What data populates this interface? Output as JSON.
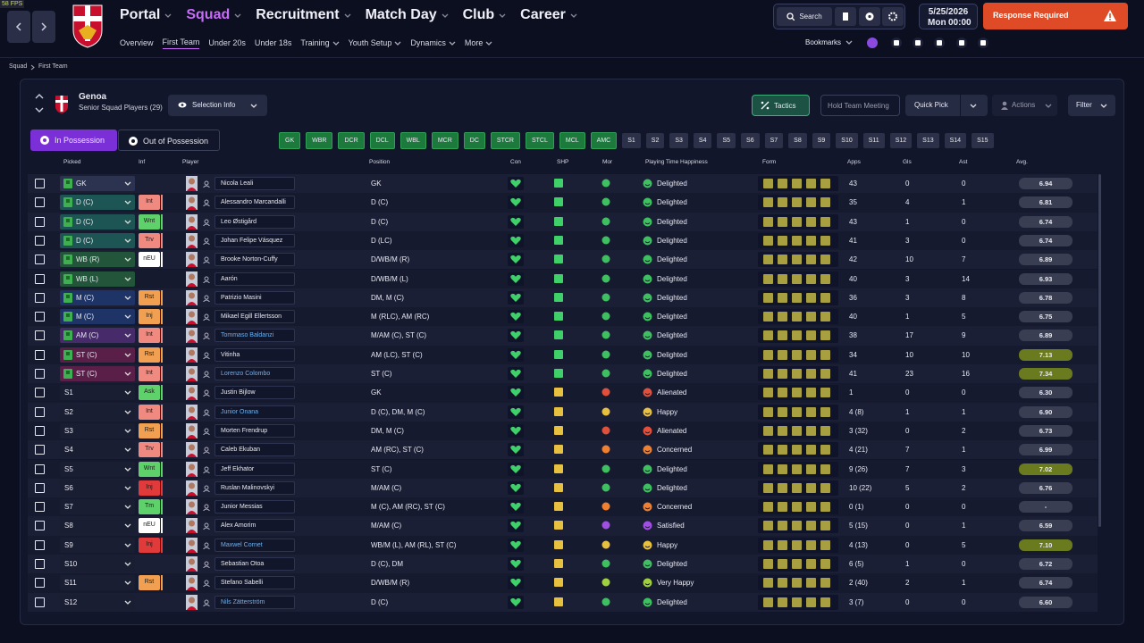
{
  "fps": "58 FPS",
  "nav": {
    "menus": [
      "Portal",
      "Squad",
      "Recruitment",
      "Match Day",
      "Club",
      "Career"
    ],
    "active_menu": 1,
    "submenu": [
      "Overview",
      "First Team",
      "Under 20s",
      "Under 18s",
      "Training",
      "Youth Setup",
      "Dynamics",
      "More"
    ],
    "active_submenu": 1,
    "submenu_dropdowns": [
      4,
      5,
      6,
      7
    ]
  },
  "topbar": {
    "search": "Search",
    "date": "5/25/2026",
    "day": "Mon",
    "time": "00:00",
    "response": "Response Required",
    "bookmarks": "Bookmarks"
  },
  "breadcrumb": [
    "Squad",
    "First Team"
  ],
  "team": {
    "name": "Genoa",
    "subtitle": "Senior Squad Players (29)",
    "selection": "Selection Info"
  },
  "buttons": {
    "tactics": "Tactics",
    "meeting": "Hold Team Meeting",
    "quick_pick": "Quick Pick",
    "actions": "Actions",
    "filter": "Filter"
  },
  "tabs": [
    "In Possession",
    "Out of Possession"
  ],
  "position_pills": {
    "active": [
      "GK",
      "WBR",
      "DCR",
      "DCL",
      "WBL",
      "MCR",
      "DC",
      "STCR",
      "STCL",
      "MCL",
      "AMC"
    ],
    "subs": [
      "S1",
      "S2",
      "S3",
      "S4",
      "S5",
      "S6",
      "S7",
      "S8",
      "S9",
      "S10",
      "S11",
      "S12",
      "S13",
      "S14",
      "S15"
    ]
  },
  "columns": {
    "picked": "Picked",
    "inf": "Inf",
    "player": "Player",
    "position": "Position",
    "con": "Con",
    "shp": "SHP",
    "mor": "Mor",
    "pth": "Playing Time Happiness",
    "form": "Form",
    "apps": "Apps",
    "gls": "Gls",
    "ast": "Ast",
    "avg": "Avg."
  },
  "rows": [
    {
      "picked": "GK",
      "chip": "#2b3350",
      "name": "Nicola Leali",
      "position": "GK",
      "pth": "Delighted",
      "pth_color": "#3fc060",
      "apps": "43",
      "gls": "0",
      "ast": "0",
      "avg": "6.94"
    },
    {
      "picked": "D (C)",
      "chip": "#1d5454",
      "inf": "Int",
      "inf_color": "#f08a80",
      "name": "Alessandro Marcandalli",
      "position": "D (C)",
      "pth": "Delighted",
      "pth_color": "#3fc060",
      "apps": "35",
      "gls": "4",
      "ast": "1",
      "avg": "6.81"
    },
    {
      "picked": "D (C)",
      "chip": "#1d5454",
      "inf": "Wnt",
      "inf_color": "#5ed16a",
      "name": "Leo Østigård",
      "position": "D (C)",
      "pth": "Delighted",
      "pth_color": "#3fc060",
      "apps": "43",
      "gls": "1",
      "ast": "0",
      "avg": "6.74"
    },
    {
      "picked": "D (C)",
      "chip": "#1d5454",
      "inf": "Trv",
      "inf_color": "#f08a80",
      "name": "Johan Felipe Vásquez",
      "position": "D (LC)",
      "pth": "Delighted",
      "pth_color": "#3fc060",
      "apps": "41",
      "gls": "3",
      "ast": "0",
      "avg": "6.74"
    },
    {
      "picked": "WB (R)",
      "chip": "#22553a",
      "inf": "nEU",
      "inf_color": "#ffffff",
      "name": "Brooke Norton-Cuffy",
      "position": "D/WB/M (R)",
      "pth": "Delighted",
      "pth_color": "#3fc060",
      "apps": "42",
      "gls": "10",
      "ast": "7",
      "avg": "6.89"
    },
    {
      "picked": "WB (L)",
      "chip": "#22553a",
      "name": "Aarón",
      "position": "D/WB/M (L)",
      "pth": "Delighted",
      "pth_color": "#3fc060",
      "apps": "40",
      "gls": "3",
      "ast": "14",
      "avg": "6.93"
    },
    {
      "picked": "M (C)",
      "chip": "#1e3466",
      "inf": "Rst",
      "inf_color": "#f0a050",
      "name": "Patrizio Masini",
      "position": "DM, M (C)",
      "pth": "Delighted",
      "pth_color": "#3fc060",
      "apps": "36",
      "gls": "3",
      "ast": "8",
      "avg": "6.78"
    },
    {
      "picked": "M (C)",
      "chip": "#1e3466",
      "inf": "Inj",
      "inf_color": "#f0a050",
      "name": "Mikael Egill Ellertsson",
      "position": "M (RLC), AM (RC)",
      "pth": "Delighted",
      "pth_color": "#3fc060",
      "apps": "40",
      "gls": "1",
      "ast": "5",
      "avg": "6.75"
    },
    {
      "picked": "AM (C)",
      "chip": "#472a6a",
      "inf": "Int",
      "inf_color": "#f08a80",
      "name": "Tommaso Baldanzi",
      "link": true,
      "position": "M/AM (C), ST (C)",
      "pth": "Delighted",
      "pth_color": "#3fc060",
      "apps": "38",
      "gls": "17",
      "ast": "9",
      "avg": "6.89"
    },
    {
      "picked": "ST (C)",
      "chip": "#5a1f48",
      "inf": "Rst",
      "inf_color": "#f0a050",
      "name": "Vitinha",
      "position": "AM (LC), ST (C)",
      "pth": "Delighted",
      "pth_color": "#3fc060",
      "apps": "34",
      "gls": "10",
      "ast": "10",
      "avg": "7.13",
      "avg_hl": true
    },
    {
      "picked": "ST (C)",
      "chip": "#5a1f48",
      "inf": "Int",
      "inf_color": "#f08a80",
      "name": "Lorenzo Colombo",
      "link": true,
      "position": "ST (C)",
      "pth": "Delighted",
      "pth_color": "#3fc060",
      "apps": "41",
      "gls": "23",
      "ast": "16",
      "avg": "7.34",
      "avg_hl": true
    },
    {
      "picked": "S1",
      "chip": "#1a1e33",
      "inf": "Ask",
      "inf_color": "#5ed16a",
      "name": "Justin Bijlow",
      "position": "GK",
      "pth": "Alienated",
      "pth_color": "#e0503a",
      "apps": "1",
      "gls": "0",
      "ast": "0",
      "avg": "6.30"
    },
    {
      "picked": "S2",
      "chip": "#1a1e33",
      "inf": "Int",
      "inf_color": "#f08a80",
      "name": "Junior Onana",
      "link": true,
      "position": "D (C), DM, M (C)",
      "pth": "Happy",
      "pth_color": "#e8c040",
      "apps": "4 (8)",
      "gls": "1",
      "ast": "1",
      "avg": "6.90"
    },
    {
      "picked": "S3",
      "chip": "#1a1e33",
      "inf": "Rst",
      "inf_color": "#f0a050",
      "name": "Morten Frendrup",
      "position": "DM, M (C)",
      "pth": "Alienated",
      "pth_color": "#e0503a",
      "apps": "3 (32)",
      "gls": "0",
      "ast": "2",
      "avg": "6.73"
    },
    {
      "picked": "S4",
      "chip": "#1a1e33",
      "inf": "Trv",
      "inf_color": "#f08a80",
      "name": "Caleb Ekuban",
      "position": "AM (RC), ST (C)",
      "pth": "Concerned",
      "pth_color": "#f08030",
      "apps": "4 (21)",
      "gls": "7",
      "ast": "1",
      "avg": "6.99"
    },
    {
      "picked": "S5",
      "chip": "#1a1e33",
      "inf": "Wnt",
      "inf_color": "#5ed16a",
      "name": "Jeff Ekhator",
      "position": "ST (C)",
      "pth": "Delighted",
      "pth_color": "#3fc060",
      "apps": "9 (26)",
      "gls": "7",
      "ast": "3",
      "avg": "7.02",
      "avg_hl": true
    },
    {
      "picked": "S6",
      "chip": "#1a1e33",
      "inf": "Inj",
      "inf_color": "#e03a3a",
      "name": "Ruslan Malinovskyi",
      "position": "M/AM (C)",
      "pth": "Delighted",
      "pth_color": "#3fc060",
      "apps": "10 (22)",
      "gls": "5",
      "ast": "2",
      "avg": "6.76"
    },
    {
      "picked": "S7",
      "chip": "#1a1e33",
      "inf": "Tm",
      "inf_color": "#5ed16a",
      "name": "Junior Messias",
      "position": "M (C), AM (RC), ST (C)",
      "pth": "Concerned",
      "pth_color": "#f08030",
      "apps": "0 (1)",
      "gls": "0",
      "ast": "0",
      "avg": "-"
    },
    {
      "picked": "S8",
      "chip": "#1a1e33",
      "inf": "nEU",
      "inf_color": "#ffffff",
      "name": "Alex Amorim",
      "position": "M/AM (C)",
      "pth": "Satisfied",
      "pth_color": "#a050e0",
      "apps": "5 (15)",
      "gls": "0",
      "ast": "1",
      "avg": "6.59"
    },
    {
      "picked": "S9",
      "chip": "#1a1e33",
      "inf": "Inj",
      "inf_color": "#e03a3a",
      "name": "Maxwel Cornet",
      "link": true,
      "position": "WB/M (L), AM (RL), ST (C)",
      "pth": "Happy",
      "pth_color": "#e8c040",
      "apps": "4 (13)",
      "gls": "0",
      "ast": "5",
      "avg": "7.10",
      "avg_hl": true
    },
    {
      "picked": "S10",
      "chip": "#1a1e33",
      "name": "Sebastian Otoa",
      "position": "D (C), DM",
      "pth": "Delighted",
      "pth_color": "#3fc060",
      "apps": "6 (5)",
      "gls": "1",
      "ast": "0",
      "avg": "6.72"
    },
    {
      "picked": "S11",
      "chip": "#1a1e33",
      "inf": "Rst",
      "inf_color": "#f0a050",
      "name": "Stefano Sabelli",
      "position": "D/WB/M (R)",
      "pth": "Very Happy",
      "pth_color": "#a0d040",
      "apps": "2 (40)",
      "gls": "2",
      "ast": "1",
      "avg": "6.74"
    },
    {
      "picked": "S12",
      "chip": "#1a1e33",
      "name": "Nils Zätterström",
      "link": true,
      "position": "D (C)",
      "pth": "Delighted",
      "pth_color": "#3fc060",
      "apps": "3 (7)",
      "gls": "0",
      "ast": "0",
      "avg": "6.60"
    }
  ]
}
